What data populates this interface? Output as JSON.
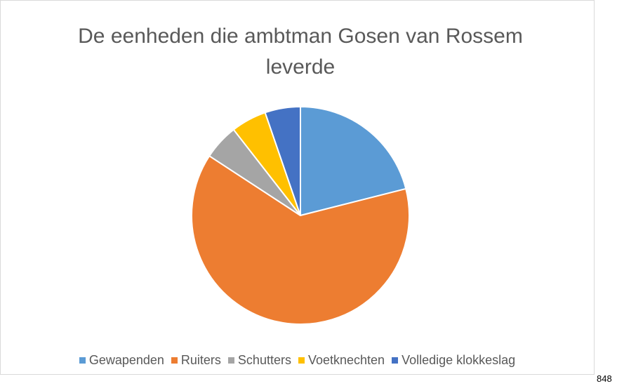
{
  "chart_data": {
    "type": "pie",
    "title": "De eenheden die ambtman Gosen van Rossem leverde",
    "categories": [
      "Gewapenden",
      "Ruiters",
      "Schutters",
      "Voetknechten",
      "Volledige klokkeslag"
    ],
    "values": [
      400,
      1200,
      100,
      100,
      100
    ],
    "colors": [
      "#5B9BD5",
      "#ED7D31",
      "#A5A5A5",
      "#FFC000",
      "#4472C4"
    ],
    "legend": "bottom"
  },
  "page_number": "848"
}
